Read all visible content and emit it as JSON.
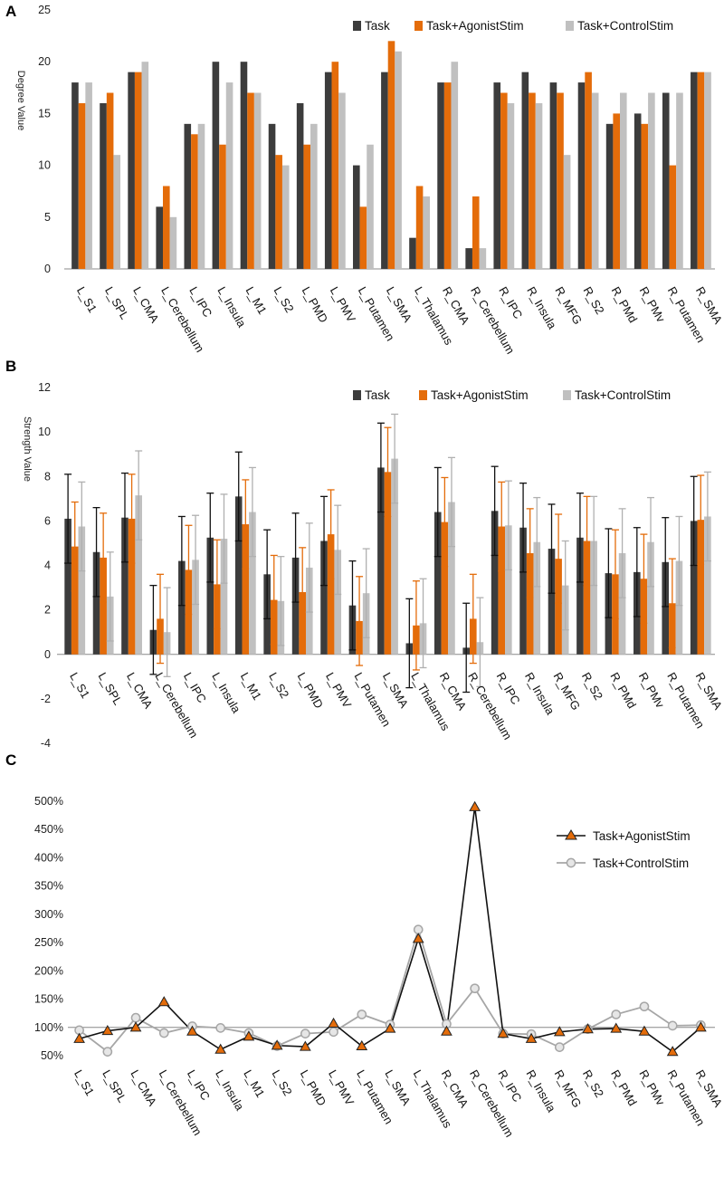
{
  "colors": {
    "task": "#3c3c3c",
    "agonist": "#e46c0a",
    "control": "#c0c0c0",
    "agonist_line": "#111111",
    "control_line": "#a6a6a6",
    "axis": "#888888"
  },
  "chart_data": [
    {
      "panel": "A",
      "type": "bar",
      "title": "",
      "xlabel": "",
      "ylabel": "Degree Value",
      "ylim": [
        0,
        25
      ],
      "yticks": [
        0,
        5,
        10,
        15,
        20,
        25
      ],
      "legend_position": "top-right",
      "categories": [
        "L_S1",
        "L_SPL",
        "L_CMA",
        "L_Cerebellum",
        "L_IPC",
        "L_Insula",
        "L_M1",
        "L_S2",
        "L_PMD",
        "L_PMV",
        "L_Putamen",
        "L_SMA",
        "L_Thalamus",
        "R_CMA",
        "R_Cerebellum",
        "R_IPC",
        "R_Insula",
        "R_MFG",
        "R_S2",
        "R_PMd",
        "R_PMv",
        "R_Putamen",
        "R_SMA"
      ],
      "series": [
        {
          "name": "Task",
          "values": [
            18,
            16,
            19,
            6,
            14,
            20,
            20,
            14,
            16,
            19,
            10,
            19,
            3,
            18,
            2,
            18,
            19,
            18,
            18,
            14,
            15,
            17,
            19
          ]
        },
        {
          "name": "Task+AgonistStim",
          "values": [
            16,
            17,
            19,
            8,
            13,
            12,
            17,
            11,
            12,
            20,
            6,
            22,
            8,
            18,
            7,
            17,
            17,
            17,
            19,
            15,
            14,
            10,
            19
          ]
        },
        {
          "name": "Task+ControlStim",
          "values": [
            18,
            11,
            20,
            5,
            14,
            18,
            17,
            10,
            14,
            17,
            12,
            21,
            7,
            20,
            2,
            16,
            16,
            11,
            17,
            17,
            17,
            17,
            19
          ]
        }
      ]
    },
    {
      "panel": "B",
      "type": "bar",
      "title": "",
      "xlabel": "",
      "ylabel": "Strength Value",
      "ylim": [
        -4,
        12
      ],
      "yticks": [
        -4,
        -2,
        0,
        2,
        4,
        6,
        8,
        10,
        12
      ],
      "legend_position": "top-right",
      "error_bars": true,
      "categories": [
        "L_S1",
        "L_SPL",
        "L_CMA",
        "L_Cerebellum",
        "L_IPC",
        "L_Insula",
        "L_M1",
        "L_S2",
        "L_PMD",
        "L_PMV",
        "L_Putamen",
        "L_SMA",
        "L_Thalamus",
        "R_CMA",
        "R_Cerebellum",
        "R_IPC",
        "R_Insula",
        "R_MFG",
        "R_S2",
        "R_PMd",
        "R_PMv",
        "R_Putamen",
        "R_SMA"
      ],
      "series": [
        {
          "name": "Task",
          "values": [
            6.1,
            4.6,
            6.15,
            1.1,
            4.2,
            5.25,
            7.1,
            3.6,
            4.35,
            5.1,
            2.2,
            8.4,
            0.5,
            6.4,
            0.3,
            6.45,
            5.7,
            4.75,
            5.25,
            3.65,
            3.7,
            4.15,
            6.0
          ],
          "errors": [
            2.0,
            2.0,
            2.0,
            2.0,
            2.0,
            2.0,
            2.0,
            2.0,
            2.0,
            2.0,
            2.0,
            2.0,
            2.0,
            2.0,
            2.0,
            2.0,
            2.0,
            2.0,
            2.0,
            2.0,
            2.0,
            2.0,
            2.0
          ]
        },
        {
          "name": "Task+AgonistStim",
          "values": [
            4.85,
            4.35,
            6.1,
            1.6,
            3.8,
            3.15,
            5.85,
            2.45,
            2.8,
            5.4,
            1.5,
            8.2,
            1.3,
            5.95,
            1.6,
            5.75,
            4.55,
            4.3,
            5.1,
            3.6,
            3.4,
            2.3,
            6.05
          ],
          "errors": [
            2.0,
            2.0,
            2.0,
            2.0,
            2.0,
            2.0,
            2.0,
            2.0,
            2.0,
            2.0,
            2.0,
            2.0,
            2.0,
            2.0,
            2.0,
            2.0,
            2.0,
            2.0,
            2.0,
            2.0,
            2.0,
            2.0,
            2.0
          ]
        },
        {
          "name": "Task+ControlStim",
          "values": [
            5.75,
            2.6,
            7.15,
            1.0,
            4.25,
            5.2,
            6.4,
            2.4,
            3.9,
            4.7,
            2.75,
            8.8,
            1.4,
            6.85,
            0.55,
            5.8,
            5.05,
            3.1,
            5.1,
            4.55,
            5.05,
            4.2,
            6.2
          ],
          "errors": [
            2.0,
            2.0,
            2.0,
            2.0,
            2.0,
            2.0,
            2.0,
            2.0,
            2.0,
            2.0,
            2.0,
            2.0,
            2.0,
            2.0,
            2.0,
            2.0,
            2.0,
            2.0,
            2.0,
            2.0,
            2.0,
            2.0,
            2.0
          ]
        }
      ]
    },
    {
      "panel": "C",
      "type": "line",
      "title": "",
      "xlabel": "",
      "ylabel": "",
      "ylim": [
        50,
        500
      ],
      "yticks": [
        50,
        100,
        150,
        200,
        250,
        300,
        350,
        400,
        450,
        500
      ],
      "ytick_labels": [
        "50%",
        "100%",
        "150%",
        "200%",
        "250%",
        "300%",
        "350%",
        "400%",
        "450%",
        "500%"
      ],
      "reference_line": 100,
      "legend_position": "right",
      "categories": [
        "L_S1",
        "L_SPL",
        "L_CMA",
        "L_Cerebellum",
        "L_IPC",
        "L_Insula",
        "L_M1",
        "L_S2",
        "L_PMD",
        "L_PMV",
        "L_Putamen",
        "L_SMA",
        "L_Thalamus",
        "R_CMA",
        "R_Cerebellum",
        "R_IPC",
        "R_Insula",
        "R_MFG",
        "R_S2",
        "R_PMd",
        "R_PMv",
        "R_Putamen",
        "R_SMA"
      ],
      "series": [
        {
          "name": "Task+AgonistStim",
          "marker": "triangle",
          "values": [
            80,
            94,
            100,
            145,
            93,
            61,
            84,
            68,
            66,
            107,
            67,
            98,
            257,
            93,
            490,
            89,
            80,
            92,
            97,
            98,
            93,
            57,
            100
          ]
        },
        {
          "name": "Task+ControlStim",
          "marker": "circle",
          "values": [
            95,
            57,
            117,
            90,
            102,
            99,
            90,
            67,
            89,
            92,
            123,
            105,
            273,
            106,
            169,
            89,
            88,
            65,
            97,
            123,
            137,
            103,
            104
          ]
        }
      ]
    }
  ]
}
